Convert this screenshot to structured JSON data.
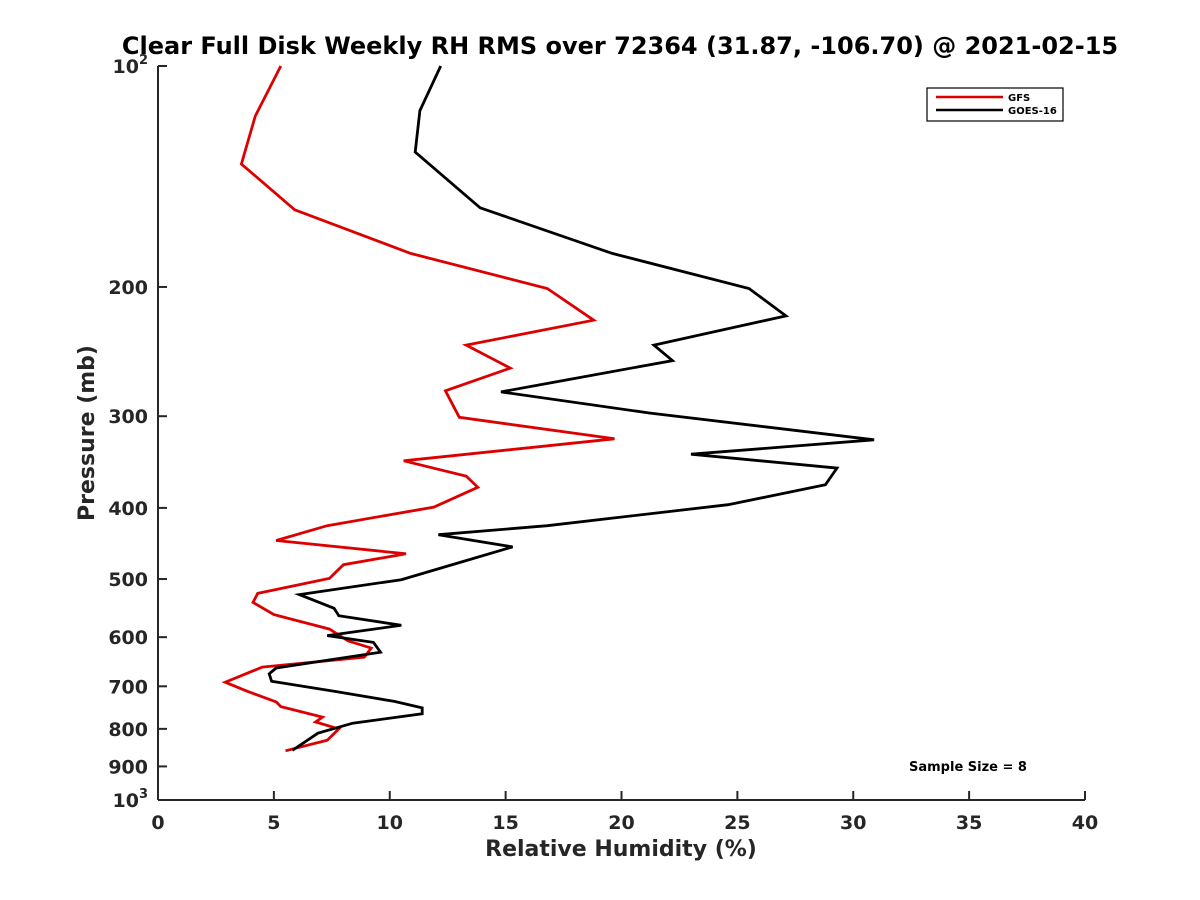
{
  "chart_data": {
    "type": "line",
    "title": "Clear Full Disk Weekly RH RMS over 72364 (31.87, -106.70) @ 2021-02-15",
    "xlabel": "Relative Humidity (%)",
    "ylabel": "Pressure (mb)",
    "xlim": [
      0,
      40
    ],
    "ylim": [
      100,
      1000
    ],
    "y_scale": "log",
    "y_reversed": true,
    "grid": false,
    "legend_position": "top-right",
    "x_ticks": [
      "0",
      "5",
      "10",
      "15",
      "20",
      "25",
      "30",
      "35",
      "40"
    ],
    "y_ticks": [
      {
        "value": 100,
        "base": "10",
        "exp": "2"
      },
      {
        "value": 200,
        "label": "200"
      },
      {
        "value": 300,
        "label": "300"
      },
      {
        "value": 400,
        "label": "400"
      },
      {
        "value": 500,
        "label": "500"
      },
      {
        "value": 600,
        "label": "600"
      },
      {
        "value": 700,
        "label": "700"
      },
      {
        "value": 800,
        "label": "800"
      },
      {
        "value": 900,
        "label": "900"
      },
      {
        "value": 1000,
        "base": "10",
        "exp": "3"
      }
    ],
    "annotation": "Sample Size = 8",
    "series": [
      {
        "name": "GFS",
        "color": "#dd0000",
        "points": [
          [
            5.3,
            100
          ],
          [
            4.2,
            117
          ],
          [
            3.6,
            136
          ],
          [
            5.9,
            157
          ],
          [
            10.9,
            180
          ],
          [
            16.8,
            201
          ],
          [
            18.8,
            222
          ],
          [
            13.3,
            240
          ],
          [
            15.2,
            258
          ],
          [
            12.4,
            277
          ],
          [
            13.0,
            301
          ],
          [
            19.7,
            322
          ],
          [
            10.6,
            345
          ],
          [
            13.3,
            362
          ],
          [
            13.8,
            375
          ],
          [
            11.9,
            399
          ],
          [
            7.3,
            423
          ],
          [
            5.1,
            443
          ],
          [
            10.7,
            462
          ],
          [
            8.0,
            478
          ],
          [
            7.4,
            499
          ],
          [
            4.3,
            523
          ],
          [
            4.1,
            538
          ],
          [
            5.0,
            559
          ],
          [
            7.4,
            585
          ],
          [
            8.2,
            607
          ],
          [
            9.2,
            621
          ],
          [
            8.9,
            639
          ],
          [
            4.5,
            659
          ],
          [
            2.9,
            691
          ],
          [
            3.8,
            710
          ],
          [
            5.1,
            735
          ],
          [
            5.3,
            746
          ],
          [
            7.1,
            771
          ],
          [
            6.8,
            783
          ],
          [
            7.8,
            800
          ],
          [
            7.3,
            829
          ],
          [
            5.5,
            857
          ]
        ]
      },
      {
        "name": "GOES-16",
        "color": "#000000",
        "points": [
          [
            12.2,
            100
          ],
          [
            11.3,
            115
          ],
          [
            11.1,
            131
          ],
          [
            13.9,
            156
          ],
          [
            19.6,
            180
          ],
          [
            25.5,
            201
          ],
          [
            27.1,
            219
          ],
          [
            21.4,
            240
          ],
          [
            22.2,
            252
          ],
          [
            14.8,
            278
          ],
          [
            21.2,
            297
          ],
          [
            30.9,
            323
          ],
          [
            23.0,
            338
          ],
          [
            29.3,
            353
          ],
          [
            28.8,
            372
          ],
          [
            24.6,
            396
          ],
          [
            16.8,
            423
          ],
          [
            12.1,
            435
          ],
          [
            15.3,
            452
          ],
          [
            12.8,
            477
          ],
          [
            10.5,
            501
          ],
          [
            6.1,
            525
          ],
          [
            7.6,
            548
          ],
          [
            7.8,
            561
          ],
          [
            10.5,
            578
          ],
          [
            7.3,
            597
          ],
          [
            9.3,
            610
          ],
          [
            9.6,
            629
          ],
          [
            5.1,
            661
          ],
          [
            4.8,
            673
          ],
          [
            4.9,
            689
          ],
          [
            7.6,
            711
          ],
          [
            10.2,
            734
          ],
          [
            11.4,
            749
          ],
          [
            11.4,
            763
          ],
          [
            8.4,
            786
          ],
          [
            6.9,
            811
          ],
          [
            5.8,
            856
          ]
        ]
      }
    ]
  }
}
